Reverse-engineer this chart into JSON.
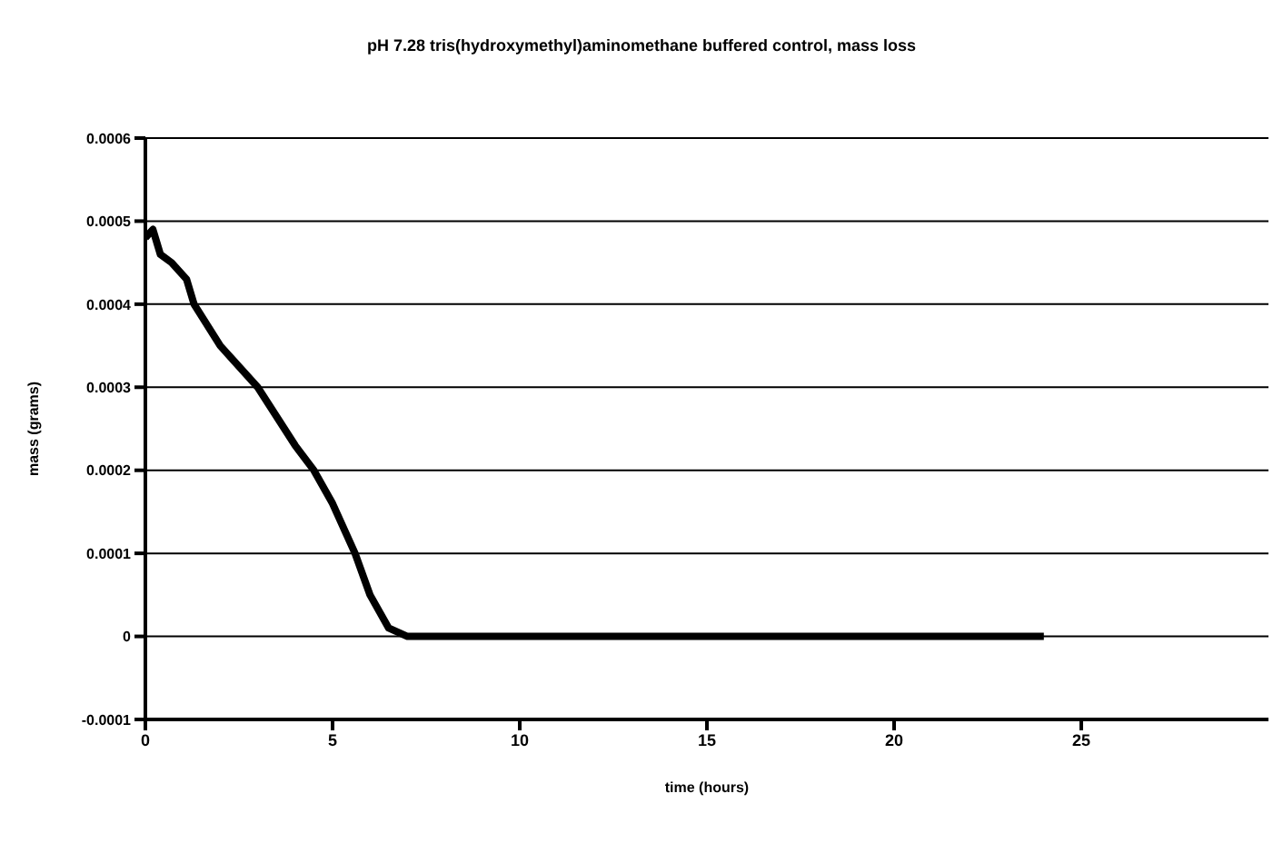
{
  "chart_data": {
    "type": "line",
    "title": "pH 7.28 tris(hydroxymethyl)aminomethane buffered control, mass loss",
    "xlabel": "time (hours)",
    "ylabel": "mass (grams)",
    "x": [
      0,
      0.2,
      0.4,
      0.7,
      1.1,
      1.3,
      2,
      3,
      4,
      4.5,
      5,
      5.6,
      6,
      6.5,
      7,
      8,
      10,
      15,
      20,
      24
    ],
    "series": [
      {
        "color": "#000000",
        "values": [
          0.00048,
          0.00049,
          0.00046,
          0.00045,
          0.00043,
          0.0004,
          0.00035,
          0.0003,
          0.00023,
          0.0002,
          0.00016,
          0.0001,
          5e-05,
          1e-05,
          0,
          0,
          0,
          0,
          0,
          0
        ]
      }
    ],
    "xlim": [
      0,
      30
    ],
    "xticks": [
      0,
      5,
      10,
      15,
      20,
      25
    ],
    "ylim": [
      -0.0001,
      0.0006
    ],
    "yticks": [
      -0.0001,
      0,
      0.0001,
      0.0002,
      0.0003,
      0.0004,
      0.0005,
      0.0006
    ],
    "grid": "y",
    "legend": false,
    "marker": "none",
    "line_style": "solid"
  }
}
